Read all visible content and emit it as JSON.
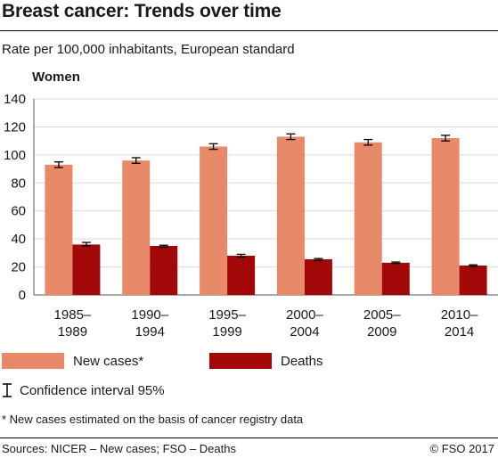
{
  "title": "Breast cancer: Trends over time",
  "subtitle": "Rate per 100,000 inhabitants, European standard",
  "panel_label": "Women",
  "legend": {
    "new_cases": "New cases*",
    "deaths": "Deaths",
    "ci": "Confidence interval 95%"
  },
  "footnote": "* New cases estimated on the basis of cancer registry data",
  "sources": "Sources: NICER – New cases; FSO – Deaths",
  "copyright": "© FSO 2017",
  "colors": {
    "new_cases": "#e8896a",
    "deaths": "#a30808",
    "grid": "#d9d9d9",
    "axis": "#555555"
  },
  "chart_data": {
    "type": "bar",
    "categories": [
      [
        "1985–",
        "1989"
      ],
      [
        "1990–",
        "1994"
      ],
      [
        "1995–",
        "1999"
      ],
      [
        "2000–",
        "2004"
      ],
      [
        "2005–",
        "2009"
      ],
      [
        "2010–",
        "2014"
      ]
    ],
    "series": [
      {
        "name": "New cases*",
        "values": [
          93,
          96,
          106,
          113,
          109,
          112
        ],
        "ci_low": [
          91,
          94,
          104,
          111,
          107,
          110
        ],
        "ci_high": [
          95,
          98,
          108,
          115,
          111,
          114
        ]
      },
      {
        "name": "Deaths",
        "values": [
          36,
          35,
          28,
          25.5,
          23,
          21
        ],
        "ci_low": [
          35,
          34,
          27,
          24.5,
          22.5,
          20.5
        ],
        "ci_high": [
          37.5,
          35.5,
          29,
          26,
          23.5,
          21.5
        ]
      }
    ],
    "ylim": [
      0,
      140
    ],
    "yticks": [
      0,
      20,
      40,
      60,
      80,
      100,
      120,
      140
    ],
    "grid": true
  }
}
